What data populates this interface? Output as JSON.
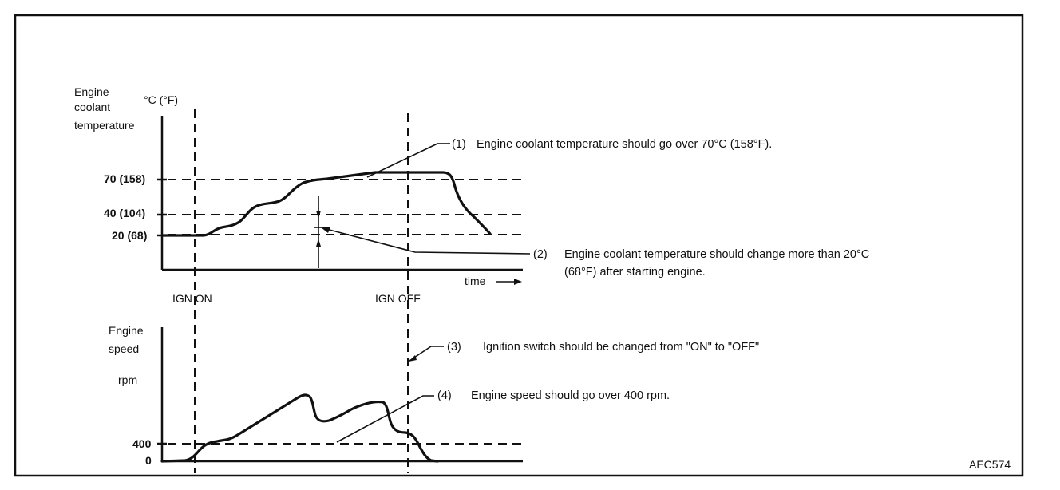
{
  "figure_id": "AEC574",
  "top_chart": {
    "ylabel": [
      "Engine",
      "coolant",
      "temperature"
    ],
    "unit": "°C (°F)",
    "ticks": [
      "70 (158)",
      "40 (104)",
      "20 (68)"
    ],
    "time_label": "time",
    "ign_on": "IGN  ON",
    "ign_off": "IGN  OFF"
  },
  "bottom_chart": {
    "ylabel": [
      "Engine",
      "speed"
    ],
    "unit": "rpm",
    "ticks": [
      "400",
      "0"
    ]
  },
  "notes": [
    {
      "num": "(1)",
      "text": "Engine coolant temperature should go over 70°C (158°F)."
    },
    {
      "num": "(2)",
      "text": "Engine coolant temperature should change more than 20°C",
      "text2": "(68°F) after starting engine."
    },
    {
      "num": "(3)",
      "text": "Ignition switch should be changed from \"ON\" to \"OFF\""
    },
    {
      "num": "(4)",
      "text": "Engine speed should go over 400 rpm."
    }
  ]
}
